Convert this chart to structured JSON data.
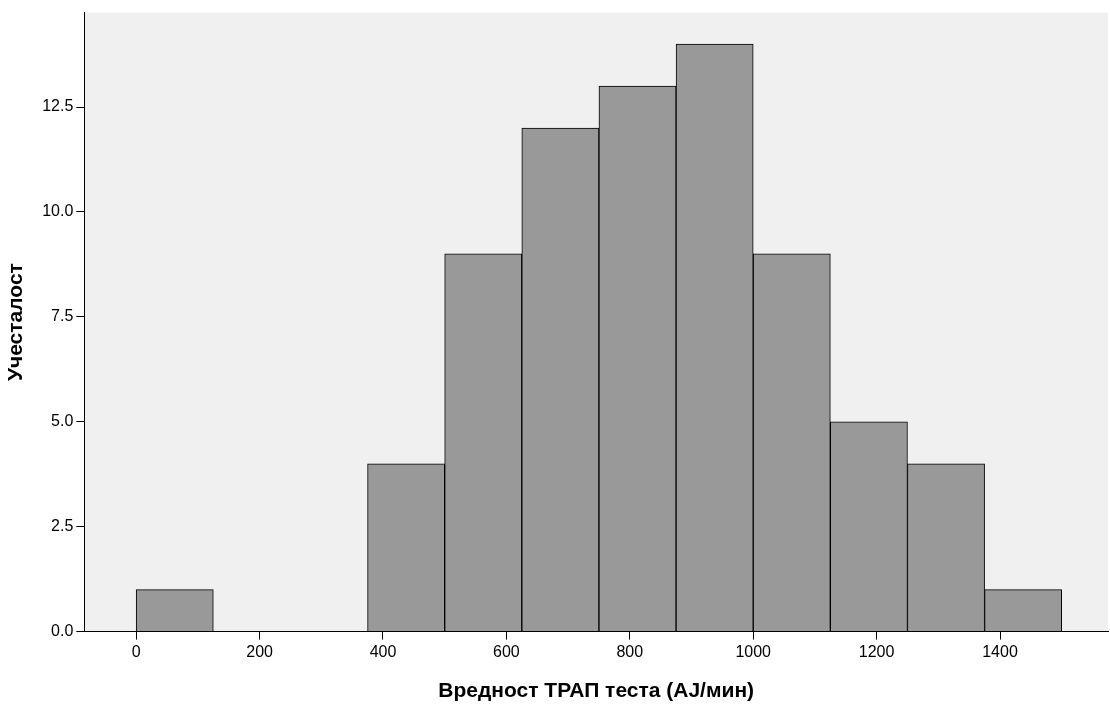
{
  "chart_data": {
    "type": "histogram",
    "xlabel": "Вредност ТРАП теста (AJ/мин)",
    "ylabel": "Учесталост",
    "bins": [
      0,
      125,
      250,
      375,
      500,
      625,
      750,
      875,
      1000,
      1125,
      1250,
      1375,
      1500
    ],
    "values": [
      1,
      0,
      0,
      4,
      9,
      12,
      13,
      14,
      9,
      5,
      4,
      1
    ],
    "color": "#999999",
    "xlim": [
      -84,
      1575
    ],
    "xticks": [
      0,
      200,
      400,
      600,
      800,
      1000,
      1200,
      1400
    ],
    "ylim": [
      0,
      14.75
    ],
    "yticks": [
      {
        "value": 0,
        "label": "0.0"
      },
      {
        "value": 2.5,
        "label": "2.5"
      },
      {
        "value": 5,
        "label": "5.0"
      },
      {
        "value": 7.5,
        "label": "7.5"
      },
      {
        "value": 10,
        "label": "10.0"
      },
      {
        "value": 12.5,
        "label": "12.5"
      }
    ],
    "grid": false,
    "legend": false
  }
}
